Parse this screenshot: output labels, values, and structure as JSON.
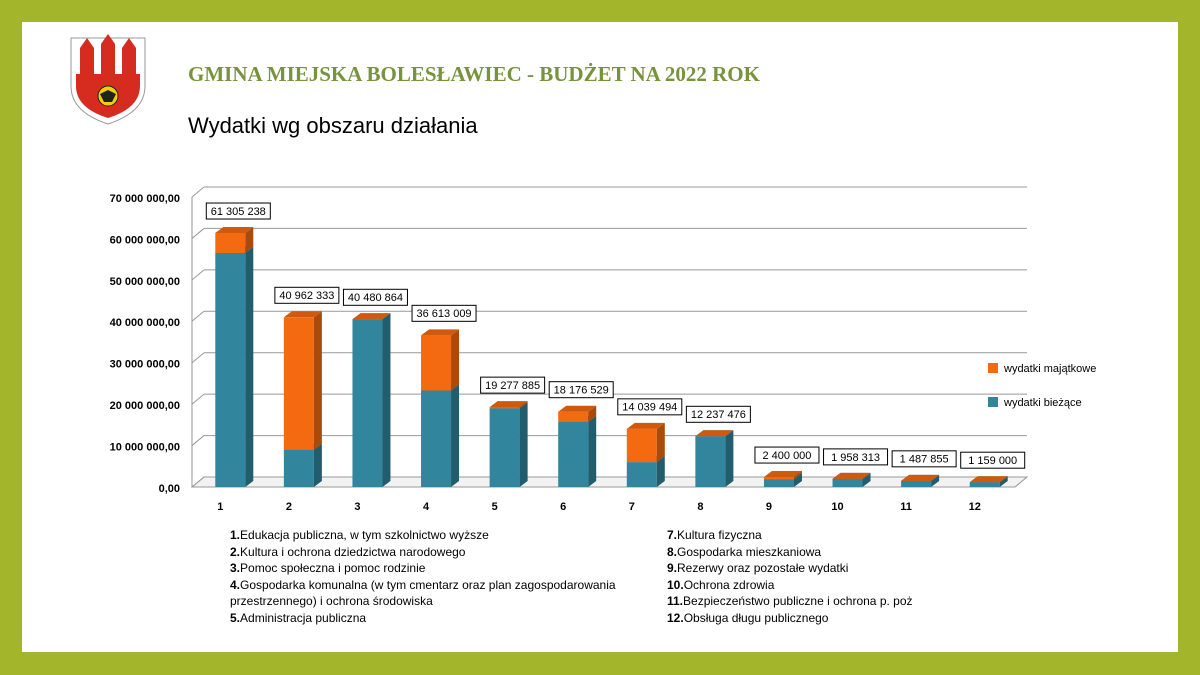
{
  "header": {
    "title": "GMINA MIEJSKA BOLESŁAWIEC - BUDŻET NA 2022 ROK",
    "subtitle": "Wydatki wg obszaru działania"
  },
  "chart_data": {
    "type": "stacked-bar-3d",
    "categories": [
      "1",
      "2",
      "3",
      "4",
      "5",
      "6",
      "7",
      "8",
      "9",
      "10",
      "11",
      "12"
    ],
    "series": [
      {
        "name": "wydatki bieżące",
        "color": "#31859c",
        "values": [
          56500000,
          9000000,
          40480864,
          23300000,
          19000000,
          15700000,
          6000000,
          12237476,
          1900000,
          1958313,
          1487855,
          1159000
        ]
      },
      {
        "name": "wydatki majątkowe",
        "color": "#f36a10",
        "values": [
          4805238,
          31962333,
          0,
          13313009,
          277885,
          2476529,
          8039494,
          0,
          500000,
          0,
          0,
          0
        ]
      }
    ],
    "totals": [
      61305238,
      40962333,
      40480864,
      36613009,
      19277885,
      18176529,
      14039494,
      12237476,
      2400000,
      1958313,
      1487855,
      1159000
    ],
    "total_labels": [
      "61 305 238",
      "40 962 333",
      "40 480 864",
      "36 613 009",
      "19 277 885",
      "18 176 529",
      "14 039 494",
      "12 237 476",
      "2 400 000",
      "1 958 313",
      "1 487 855",
      "1 159 000"
    ],
    "ylim": [
      0,
      70000000
    ],
    "yticks": [
      {
        "value": 0,
        "label": "0,00"
      },
      {
        "value": 10000000,
        "label": "10 000 000,00"
      },
      {
        "value": 20000000,
        "label": "20 000 000,00"
      },
      {
        "value": 30000000,
        "label": "30 000 000,00"
      },
      {
        "value": 40000000,
        "label": "40 000 000,00"
      },
      {
        "value": 50000000,
        "label": "50 000 000,00"
      },
      {
        "value": 60000000,
        "label": "60 000 000,00"
      },
      {
        "value": 70000000,
        "label": "70 000 000,00"
      }
    ],
    "grid": true,
    "legend": "right"
  },
  "notes_left": [
    {
      "number": "1.",
      "text": "Edukacja publiczna, w tym szkolnictwo wyższe"
    },
    {
      "number": "2.",
      "text": "Kultura i ochrona dziedzictwa narodowego"
    },
    {
      "number": "3.",
      "text": "Pomoc społeczna i pomoc rodzinie"
    },
    {
      "number": "4.",
      "text": "Gospodarka komunalna (w tym cmentarz oraz plan zagospodarowania przestrzennego) i  ochrona środowiska"
    },
    {
      "number": "5.",
      "text": "Administracja publiczna"
    }
  ],
  "notes_right": [
    {
      "number": "7.",
      "text": "Kultura fizyczna"
    },
    {
      "number": "8.",
      "text": "Gospodarka mieszkaniowa"
    },
    {
      "number": "9.",
      "text": "Rezerwy oraz pozostałe wydatki"
    },
    {
      "number": "10.",
      "text": "Ochrona zdrowia"
    },
    {
      "number": "11.",
      "text": "Bezpieczeństwo publiczne i ochrona p. poż"
    },
    {
      "number": "12.",
      "text": "Obsługa długu publicznego"
    }
  ]
}
